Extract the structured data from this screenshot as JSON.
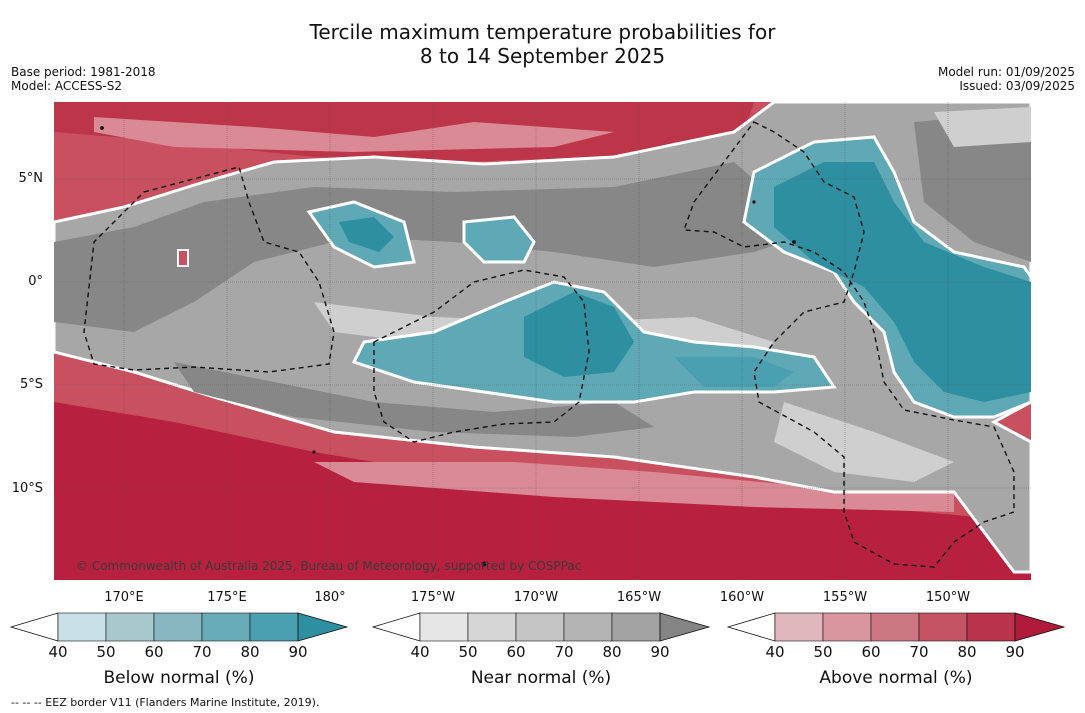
{
  "header": {
    "title_line1": "Tercile maximum temperature probabilities for",
    "title_line2": "8 to 14 September 2025",
    "base_period": "Base period: 1981-2018",
    "model": "Model: ACCESS-S2",
    "model_run": "Model run: 01/09/2025",
    "issued": "Issued: 03/09/2025"
  },
  "map": {
    "lat_labels": [
      "5°N",
      "0°",
      "5°S",
      "10°S"
    ],
    "lon_labels": [
      "170°E",
      "175°E",
      "180°",
      "175°W",
      "170°W",
      "165°W",
      "160°W",
      "155°W",
      "150°W"
    ],
    "credit": "© Commonwealth of Australia 2025, Bureau of Meteorology, supported by COSPPac",
    "colors": {
      "above_dark": "#b8203f",
      "above_mid": "#c9505f",
      "above_light": "#d98a94",
      "near_dark": "#878787",
      "near_mid": "#a7a7a7",
      "near_light": "#cfcfcf",
      "below_dark": "#2e8fa1",
      "below_mid": "#5fa9b7",
      "below_light": "#a9cfd6"
    }
  },
  "colorbars": [
    {
      "label": "Below normal (%)",
      "ticks": [
        "40",
        "50",
        "60",
        "70",
        "80",
        "90"
      ],
      "colors": [
        "#c7e1e6",
        "#a8c8ce",
        "#88b6c1",
        "#68acb9",
        "#4aa0b0",
        "#2e8fa1"
      ]
    },
    {
      "label": "Near normal (%)",
      "ticks": [
        "40",
        "50",
        "60",
        "70",
        "80",
        "90"
      ],
      "colors": [
        "#e6e6e6",
        "#d6d6d6",
        "#c5c5c5",
        "#b4b4b4",
        "#a3a3a3",
        "#848484"
      ]
    },
    {
      "label": "Above normal (%)",
      "ticks": [
        "40",
        "50",
        "60",
        "70",
        "80",
        "90"
      ],
      "colors": [
        "#e0b7bd",
        "#d8979f",
        "#cc7882",
        "#c45363",
        "#b8334b",
        "#b01b3b"
      ]
    }
  ],
  "footnote": "--  --  -- EEZ border V11 (Flanders Marine Institute, 2019)."
}
